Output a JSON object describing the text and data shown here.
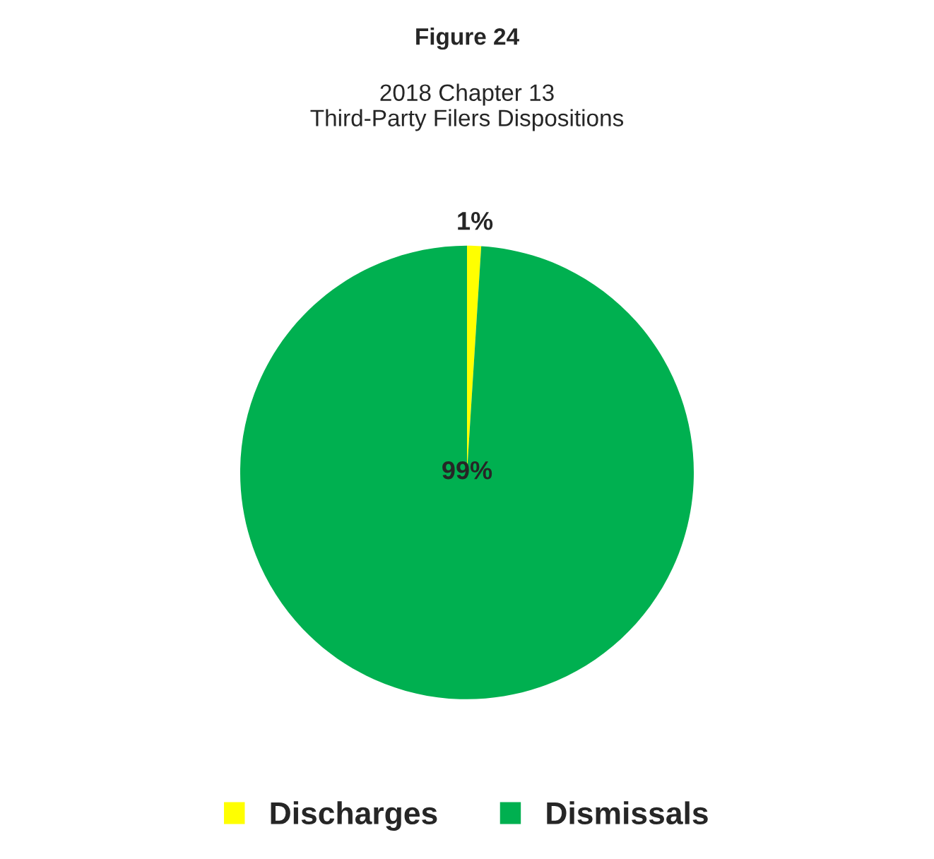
{
  "chart_data": {
    "type": "pie",
    "title": "Figure 24",
    "subtitle": "2018 Chapter 13\nThird-Party Filers Dispositions",
    "categories": [
      "Discharges",
      "Dismissals"
    ],
    "values": [
      1,
      99
    ],
    "value_labels": [
      "1%",
      "99%"
    ],
    "colors": [
      "#ffff00",
      "#00b050"
    ],
    "legend": "bottom"
  }
}
